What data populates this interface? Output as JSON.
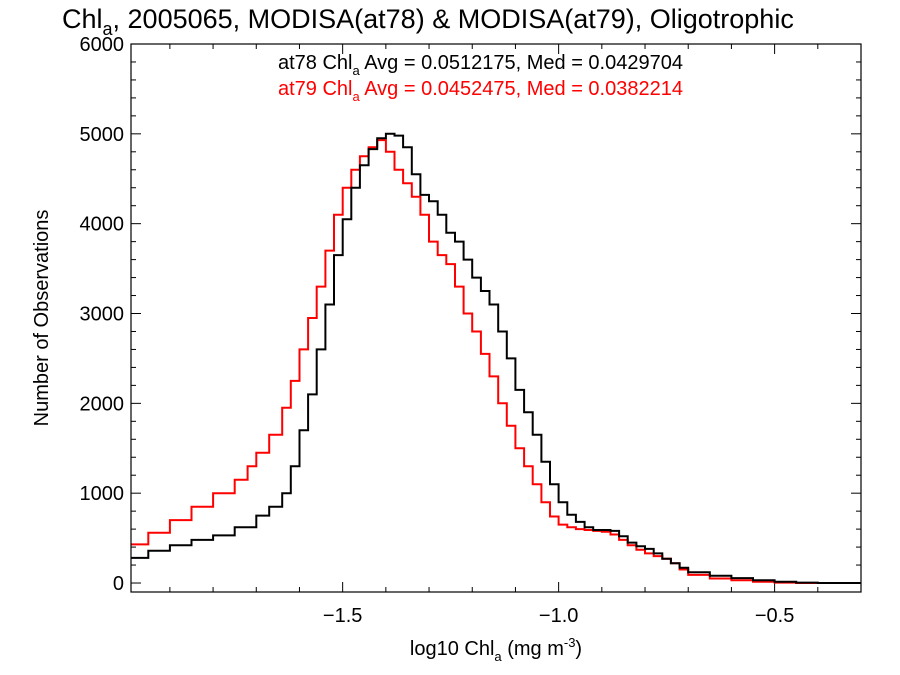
{
  "chart_data": {
    "type": "line",
    "title_parts": {
      "pre": "Chl",
      "sub": "a",
      "post": ", 2005065, MODISA(at78) & MODISA(at79), Oligotrophic"
    },
    "xlabel_parts": {
      "pre": "log10 Chl",
      "sub": "a",
      "mid": " (mg m",
      "sup": "-3",
      "post": ")"
    },
    "ylabel": "Number of Observations",
    "xlim": [
      -1.99,
      -0.3
    ],
    "ylim": [
      -100,
      6000
    ],
    "xticks": [
      {
        "v": -1.5,
        "label": "−1.5"
      },
      {
        "v": -1.0,
        "label": "−1.0"
      },
      {
        "v": -0.5,
        "label": "−0.5"
      }
    ],
    "yticks": [
      {
        "v": 0,
        "label": "0"
      },
      {
        "v": 1000,
        "label": "1000"
      },
      {
        "v": 2000,
        "label": "2000"
      },
      {
        "v": 3000,
        "label": "3000"
      },
      {
        "v": 4000,
        "label": "4000"
      },
      {
        "v": 5000,
        "label": "5000"
      },
      {
        "v": 6000,
        "label": "6000"
      }
    ],
    "legend_placement": "top-right",
    "series": [
      {
        "id": "at78",
        "color": "#000000",
        "stats": {
          "pre": "at78 Chl",
          "sub": "a",
          "post": " Avg = 0.0512175, Med = 0.0429704"
        },
        "points": [
          [
            -1.99,
            280
          ],
          [
            -1.95,
            360
          ],
          [
            -1.9,
            420
          ],
          [
            -1.85,
            480
          ],
          [
            -1.8,
            530
          ],
          [
            -1.75,
            620
          ],
          [
            -1.7,
            750
          ],
          [
            -1.67,
            850
          ],
          [
            -1.64,
            1000
          ],
          [
            -1.62,
            1300
          ],
          [
            -1.6,
            1700
          ],
          [
            -1.58,
            2100
          ],
          [
            -1.56,
            2600
          ],
          [
            -1.54,
            3100
          ],
          [
            -1.52,
            3650
          ],
          [
            -1.5,
            4050
          ],
          [
            -1.48,
            4400
          ],
          [
            -1.46,
            4650
          ],
          [
            -1.44,
            4830
          ],
          [
            -1.42,
            4950
          ],
          [
            -1.4,
            5000
          ],
          [
            -1.38,
            4980
          ],
          [
            -1.36,
            4850
          ],
          [
            -1.34,
            4550
          ],
          [
            -1.32,
            4320
          ],
          [
            -1.3,
            4250
          ],
          [
            -1.28,
            4100
          ],
          [
            -1.26,
            3900
          ],
          [
            -1.24,
            3800
          ],
          [
            -1.22,
            3600
          ],
          [
            -1.2,
            3400
          ],
          [
            -1.18,
            3250
          ],
          [
            -1.16,
            3100
          ],
          [
            -1.14,
            2800
          ],
          [
            -1.12,
            2500
          ],
          [
            -1.1,
            2150
          ],
          [
            -1.08,
            1900
          ],
          [
            -1.06,
            1650
          ],
          [
            -1.04,
            1350
          ],
          [
            -1.02,
            1100
          ],
          [
            -1.0,
            900
          ],
          [
            -0.98,
            760
          ],
          [
            -0.96,
            680
          ],
          [
            -0.94,
            620
          ],
          [
            -0.92,
            590
          ],
          [
            -0.9,
            590
          ],
          [
            -0.88,
            580
          ],
          [
            -0.86,
            520
          ],
          [
            -0.84,
            450
          ],
          [
            -0.82,
            410
          ],
          [
            -0.8,
            380
          ],
          [
            -0.78,
            330
          ],
          [
            -0.76,
            270
          ],
          [
            -0.74,
            220
          ],
          [
            -0.72,
            170
          ],
          [
            -0.7,
            120
          ],
          [
            -0.65,
            80
          ],
          [
            -0.6,
            55
          ],
          [
            -0.55,
            30
          ],
          [
            -0.5,
            15
          ],
          [
            -0.45,
            5
          ],
          [
            -0.4,
            0
          ],
          [
            -0.3,
            0
          ]
        ]
      },
      {
        "id": "at79",
        "color": "#ff0000",
        "stats": {
          "pre": "at79 Chl",
          "sub": "a",
          "post": " Avg = 0.0452475, Med = 0.0382214"
        },
        "points": [
          [
            -1.99,
            430
          ],
          [
            -1.95,
            560
          ],
          [
            -1.9,
            700
          ],
          [
            -1.85,
            850
          ],
          [
            -1.8,
            1000
          ],
          [
            -1.75,
            1150
          ],
          [
            -1.72,
            1300
          ],
          [
            -1.7,
            1450
          ],
          [
            -1.67,
            1650
          ],
          [
            -1.64,
            1950
          ],
          [
            -1.62,
            2250
          ],
          [
            -1.6,
            2600
          ],
          [
            -1.58,
            2950
          ],
          [
            -1.56,
            3300
          ],
          [
            -1.54,
            3700
          ],
          [
            -1.52,
            4100
          ],
          [
            -1.5,
            4400
          ],
          [
            -1.48,
            4600
          ],
          [
            -1.46,
            4750
          ],
          [
            -1.44,
            4850
          ],
          [
            -1.42,
            4930
          ],
          [
            -1.4,
            4800
          ],
          [
            -1.38,
            4600
          ],
          [
            -1.36,
            4450
          ],
          [
            -1.34,
            4300
          ],
          [
            -1.32,
            4100
          ],
          [
            -1.3,
            3800
          ],
          [
            -1.28,
            3650
          ],
          [
            -1.26,
            3550
          ],
          [
            -1.24,
            3300
          ],
          [
            -1.22,
            3000
          ],
          [
            -1.2,
            2800
          ],
          [
            -1.18,
            2550
          ],
          [
            -1.16,
            2300
          ],
          [
            -1.14,
            2000
          ],
          [
            -1.12,
            1750
          ],
          [
            -1.1,
            1500
          ],
          [
            -1.08,
            1300
          ],
          [
            -1.06,
            1100
          ],
          [
            -1.04,
            900
          ],
          [
            -1.02,
            740
          ],
          [
            -1.0,
            650
          ],
          [
            -0.98,
            620
          ],
          [
            -0.96,
            600
          ],
          [
            -0.94,
            590
          ],
          [
            -0.92,
            580
          ],
          [
            -0.9,
            570
          ],
          [
            -0.88,
            540
          ],
          [
            -0.86,
            480
          ],
          [
            -0.84,
            420
          ],
          [
            -0.82,
            370
          ],
          [
            -0.8,
            330
          ],
          [
            -0.78,
            300
          ],
          [
            -0.76,
            270
          ],
          [
            -0.74,
            220
          ],
          [
            -0.72,
            150
          ],
          [
            -0.7,
            90
          ],
          [
            -0.65,
            50
          ],
          [
            -0.6,
            30
          ],
          [
            -0.55,
            15
          ],
          [
            -0.5,
            5
          ],
          [
            -0.45,
            0
          ],
          [
            -0.3,
            0
          ]
        ]
      }
    ]
  }
}
